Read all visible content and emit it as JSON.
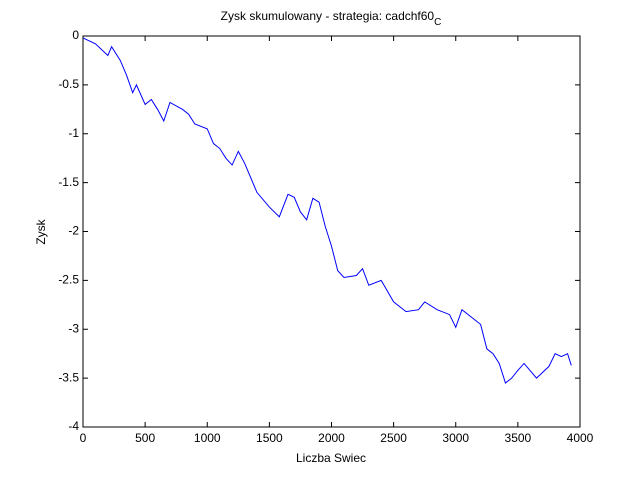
{
  "chart_data": {
    "type": "line",
    "title": "Zysk skumulowany - strategia: cadchf60",
    "title_subscript": "C",
    "xlabel": "Liczba Swiec",
    "ylabel": "Zysk",
    "xlim": [
      0,
      4000
    ],
    "ylim": [
      -4,
      0
    ],
    "xticks": [
      0,
      500,
      1000,
      1500,
      2000,
      2500,
      3000,
      3500,
      4000
    ],
    "yticks": [
      -4,
      -3.5,
      -3,
      -2.5,
      -2,
      -1.5,
      -1,
      -0.5,
      0
    ],
    "grid": false,
    "series": [
      {
        "color": "#0000ff",
        "x": [
          0,
          100,
          200,
          230,
          300,
          350,
          400,
          430,
          500,
          550,
          600,
          650,
          700,
          800,
          850,
          900,
          1000,
          1050,
          1100,
          1150,
          1200,
          1250,
          1300,
          1400,
          1500,
          1580,
          1650,
          1700,
          1750,
          1800,
          1850,
          1900,
          1950,
          2000,
          2050,
          2100,
          2200,
          2250,
          2300,
          2400,
          2500,
          2600,
          2700,
          2750,
          2850,
          2950,
          3000,
          3050,
          3100,
          3200,
          3250,
          3300,
          3350,
          3400,
          3450,
          3500,
          3550,
          3650,
          3750,
          3800,
          3850,
          3900,
          3930
        ],
        "values": [
          -0.02,
          -0.08,
          -0.2,
          -0.11,
          -0.25,
          -0.4,
          -0.58,
          -0.5,
          -0.7,
          -0.65,
          -0.75,
          -0.87,
          -0.68,
          -0.75,
          -0.8,
          -0.9,
          -0.95,
          -1.1,
          -1.15,
          -1.25,
          -1.32,
          -1.18,
          -1.3,
          -1.6,
          -1.75,
          -1.85,
          -1.62,
          -1.65,
          -1.8,
          -1.88,
          -1.66,
          -1.7,
          -1.95,
          -2.15,
          -2.4,
          -2.47,
          -2.45,
          -2.38,
          -2.55,
          -2.5,
          -2.72,
          -2.82,
          -2.8,
          -2.72,
          -2.8,
          -2.85,
          -2.98,
          -2.8,
          -2.85,
          -2.95,
          -3.2,
          -3.25,
          -3.35,
          -3.55,
          -3.5,
          -3.42,
          -3.35,
          -3.5,
          -3.38,
          -3.25,
          -3.28,
          -3.25,
          -3.37
        ]
      }
    ]
  }
}
